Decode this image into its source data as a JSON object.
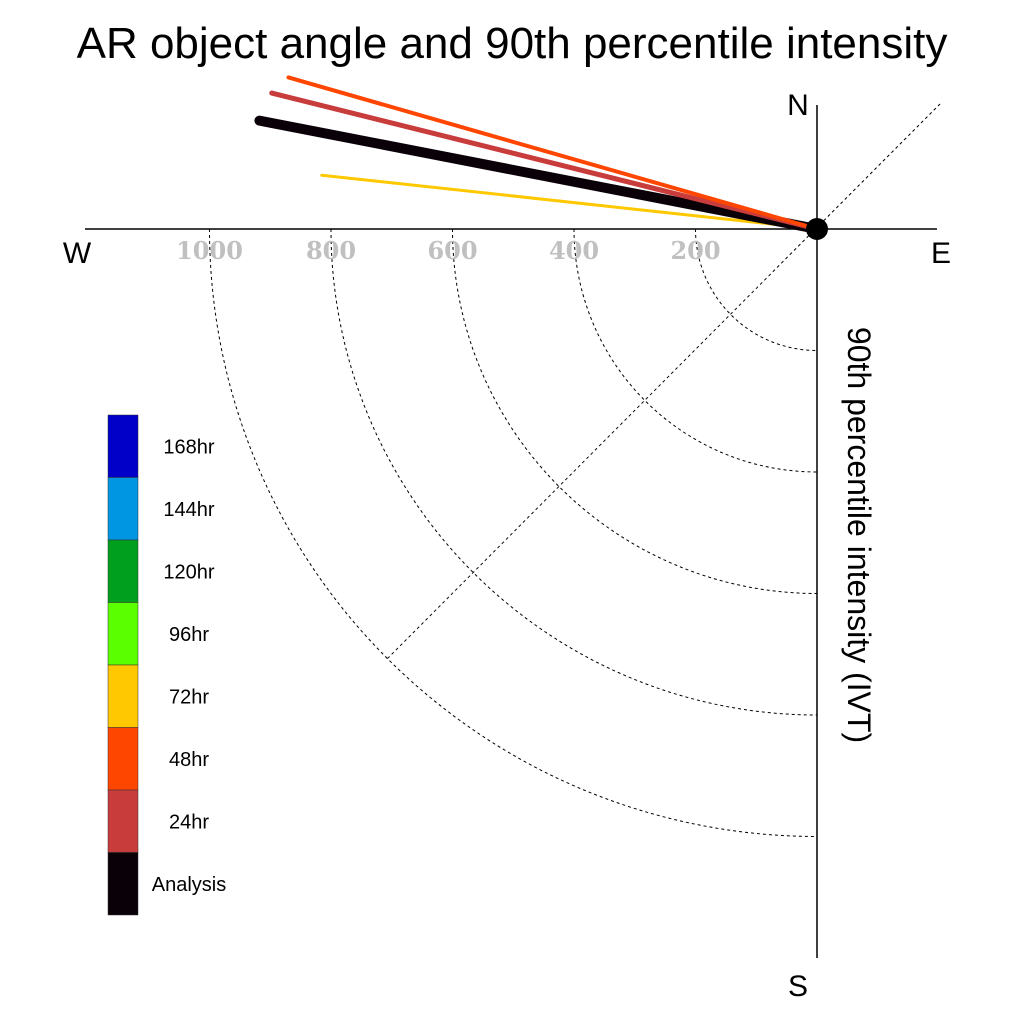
{
  "chart_data": {
    "type": "polar-line",
    "title": "AR object angle and 90th percentile intensity",
    "radial_label": "90th percentile intensity (IVT)",
    "compass": {
      "north": "N",
      "south": "S",
      "east": "E",
      "west": "W"
    },
    "radial_ticks": [
      200,
      400,
      600,
      800,
      1000
    ],
    "radial_tick_labels": [
      "200",
      "400",
      "600",
      "800",
      "1000"
    ],
    "angle_convention": "compass bearing, degrees clockwise from north",
    "series": [
      {
        "name": "72hr",
        "color": "#ffc800",
        "bearing_deg": 276.2,
        "intensity": 820,
        "line_width": 3
      },
      {
        "name": "Analysis",
        "color": "#0a0008",
        "bearing_deg": 281.0,
        "intensity": 935,
        "line_width": 10
      },
      {
        "name": "24hr",
        "color": "#c83c3c",
        "bearing_deg": 284.0,
        "intensity": 925,
        "line_width": 5
      },
      {
        "name": "48hr",
        "color": "#ff4600",
        "bearing_deg": 286.0,
        "intensity": 905,
        "line_width": 4
      }
    ],
    "legend": [
      {
        "label": "168hr",
        "color": "#0000c8"
      },
      {
        "label": "144hr",
        "color": "#0096e1"
      },
      {
        "label": "120hr",
        "color": "#00a01e"
      },
      {
        "label": "96hr",
        "color": "#5aff00"
      },
      {
        "label": "72hr",
        "color": "#ffc800"
      },
      {
        "label": "48hr",
        "color": "#ff4600"
      },
      {
        "label": "24hr",
        "color": "#c83c3c"
      },
      {
        "label": "Analysis",
        "color": "#0a0008"
      }
    ],
    "legend_placement": "left"
  }
}
